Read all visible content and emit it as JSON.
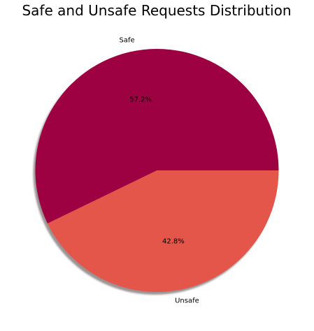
{
  "chart_data": {
    "type": "pie",
    "title": "Safe and Unsafe Requests Distribution",
    "categories": [
      "Safe",
      "Unsafe"
    ],
    "values": [
      57.2,
      42.8
    ],
    "value_labels": [
      "57.2%",
      "42.8%"
    ],
    "colors": [
      "#9e0142",
      "#e4554a"
    ],
    "shadow": true,
    "start_angle_deg": 0,
    "direction": "counterclockwise"
  }
}
